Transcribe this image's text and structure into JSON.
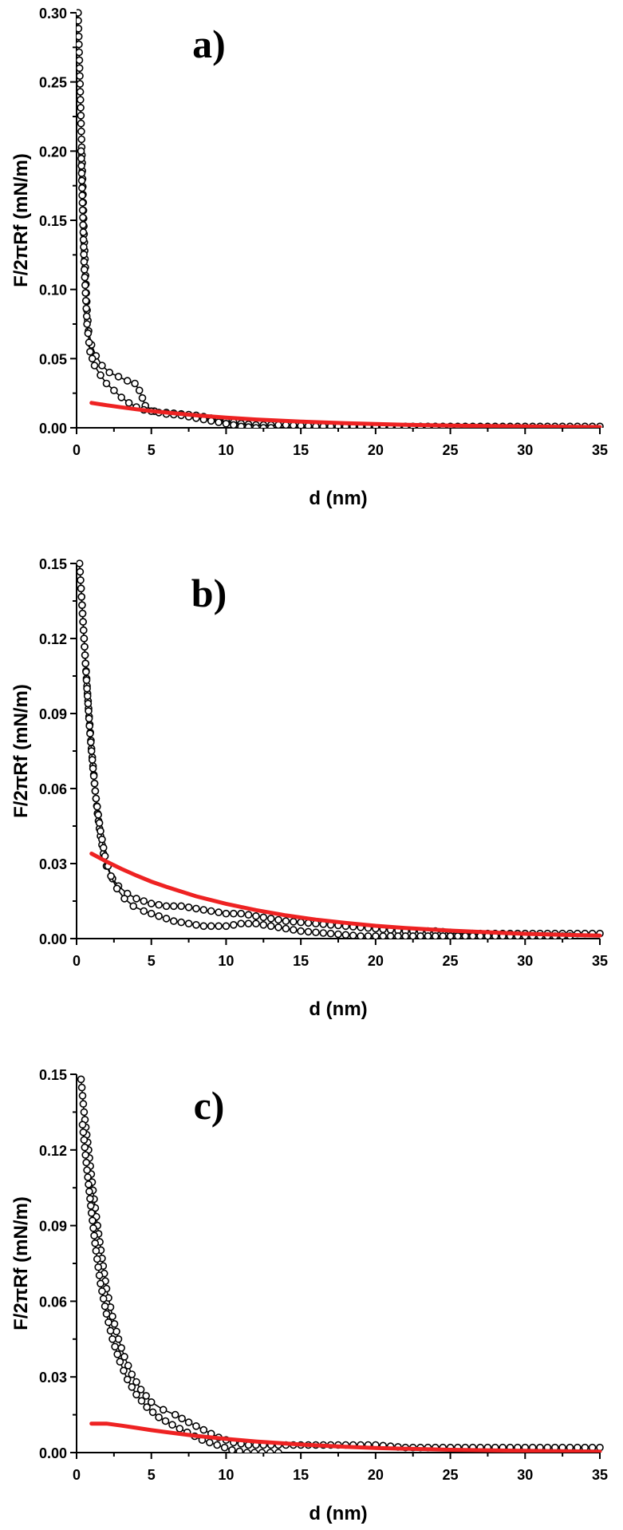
{
  "chart_data": [
    {
      "type": "scatter",
      "panel_label": "a)",
      "xlabel": "d (nm)",
      "ylabel": "F/2πRf (mN/m)",
      "xlim": [
        0,
        35
      ],
      "ylim": [
        0,
        0.3
      ],
      "xticks": [
        0,
        5,
        10,
        15,
        20,
        25,
        30,
        35
      ],
      "xtick_labels": [
        "0",
        "5",
        "10",
        "15",
        "20",
        "25",
        "30",
        "35"
      ],
      "yticks": [
        0.0,
        0.05,
        0.1,
        0.15,
        0.2,
        0.25,
        0.3
      ],
      "ytick_labels": [
        "0.00",
        "0.05",
        "0.10",
        "0.15",
        "0.20",
        "0.25",
        "0.30"
      ],
      "grid": false,
      "series": [
        {
          "kind": "markers",
          "color": "#000000",
          "x": [
            0.1,
            0.2,
            0.3,
            0.4,
            0.5,
            0.6,
            0.7,
            0.8,
            1.0,
            1.3,
            1.7,
            2.2,
            2.8,
            3.4,
            3.9,
            4.2,
            4.6,
            5.2,
            6.0,
            7.0,
            8.0,
            9.0,
            10.0,
            11.0,
            12.0,
            14.0,
            16.0,
            18.0,
            20.0,
            22.0,
            24.0,
            26.0,
            28.0,
            30.0,
            32.0,
            34.0,
            35.0
          ],
          "y": [
            0.3,
            0.26,
            0.22,
            0.18,
            0.14,
            0.11,
            0.085,
            0.07,
            0.06,
            0.052,
            0.045,
            0.04,
            0.037,
            0.034,
            0.032,
            0.027,
            0.016,
            0.012,
            0.011,
            0.01,
            0.009,
            0.007,
            0.005,
            0.003,
            0.002,
            0.002,
            0.001,
            0.001,
            0.001,
            0.001,
            0.001,
            0.001,
            0.001,
            0.001,
            0.001,
            0.001,
            0.001
          ]
        },
        {
          "kind": "markers",
          "color": "#000000",
          "x": [
            0.3,
            0.5,
            0.7,
            0.9,
            1.2,
            1.6,
            2.0,
            2.5,
            3.0,
            3.5,
            4.0,
            4.5,
            5.0,
            5.5,
            6.0,
            7.0,
            8.0,
            9.0,
            10.0,
            11.0,
            12.0,
            13.0
          ],
          "y": [
            0.2,
            0.12,
            0.075,
            0.055,
            0.045,
            0.038,
            0.032,
            0.027,
            0.022,
            0.018,
            0.015,
            0.013,
            0.012,
            0.011,
            0.01,
            0.009,
            0.007,
            0.005,
            0.003,
            0.001,
            0.0,
            0.0
          ]
        },
        {
          "kind": "line",
          "color": "#ee2222",
          "x": [
            1,
            2,
            3,
            4,
            5,
            6,
            8,
            10,
            12,
            15,
            18,
            20,
            22,
            25,
            28,
            30,
            32,
            35
          ],
          "y": [
            0.018,
            0.0163,
            0.0148,
            0.0134,
            0.0121,
            0.011,
            0.009,
            0.0074,
            0.006,
            0.0045,
            0.0033,
            0.0027,
            0.0022,
            0.0016,
            0.0012,
            0.001,
            0.0008,
            0.0006
          ]
        }
      ]
    },
    {
      "type": "scatter",
      "panel_label": "b)",
      "xlabel": "d (nm)",
      "ylabel": "F/2πRf (mN/m)",
      "xlim": [
        0,
        35
      ],
      "ylim": [
        0,
        0.15
      ],
      "xticks": [
        0,
        5,
        10,
        15,
        20,
        25,
        30,
        35
      ],
      "xtick_labels": [
        "0",
        "5",
        "10",
        "15",
        "20",
        "25",
        "30",
        "35"
      ],
      "yticks": [
        0.0,
        0.03,
        0.06,
        0.09,
        0.12,
        0.15
      ],
      "ytick_labels": [
        "0.00",
        "0.03",
        "0.06",
        "0.09",
        "0.12",
        "0.15"
      ],
      "grid": false,
      "series": [
        {
          "kind": "markers",
          "color": "#000000",
          "x": [
            0.2,
            0.4,
            0.6,
            0.8,
            1.0,
            1.2,
            1.4,
            1.6,
            1.8,
            2.0,
            2.4,
            2.8,
            3.4,
            4.0,
            5.0,
            6.0,
            7.0,
            8.0,
            9.0,
            10.0,
            11.0,
            12.0,
            13.0,
            14.0,
            16.0,
            18.0,
            20.0,
            22.0,
            24.0,
            26.0,
            28.0,
            30.0,
            32.0,
            34.0,
            35.0
          ],
          "y": [
            0.15,
            0.13,
            0.11,
            0.092,
            0.076,
            0.062,
            0.05,
            0.041,
            0.034,
            0.029,
            0.024,
            0.021,
            0.018,
            0.016,
            0.014,
            0.013,
            0.013,
            0.012,
            0.011,
            0.01,
            0.01,
            0.009,
            0.008,
            0.007,
            0.006,
            0.005,
            0.004,
            0.003,
            0.003,
            0.002,
            0.002,
            0.002,
            0.002,
            0.002,
            0.002
          ]
        },
        {
          "kind": "markers",
          "color": "#000000",
          "x": [
            0.3,
            0.5,
            0.7,
            0.9,
            1.1,
            1.3,
            1.6,
            1.9,
            2.3,
            2.7,
            3.2,
            3.8,
            4.5,
            5.5,
            6.5,
            7.5,
            8.5,
            10.0,
            11.0,
            12.0,
            13.0,
            14.0,
            15.0,
            17.0,
            19.0,
            21.0,
            23.0,
            25.0,
            27.0,
            29.0,
            31.0,
            33.0
          ],
          "y": [
            0.14,
            0.12,
            0.1,
            0.082,
            0.068,
            0.056,
            0.043,
            0.033,
            0.025,
            0.02,
            0.016,
            0.013,
            0.011,
            0.009,
            0.007,
            0.006,
            0.005,
            0.005,
            0.006,
            0.006,
            0.005,
            0.004,
            0.003,
            0.002,
            0.001,
            0.001,
            0.001,
            0.001,
            0.001,
            0.001,
            0.001,
            0.001
          ]
        },
        {
          "kind": "line",
          "color": "#ee2222",
          "x": [
            1,
            2,
            3,
            4,
            5,
            6,
            8,
            10,
            12,
            14,
            16,
            18,
            20,
            22,
            25,
            28,
            30,
            32,
            35
          ],
          "y": [
            0.034,
            0.0308,
            0.0279,
            0.0252,
            0.0228,
            0.0207,
            0.0169,
            0.0139,
            0.0114,
            0.0093,
            0.0076,
            0.0063,
            0.0051,
            0.0042,
            0.0032,
            0.0024,
            0.0019,
            0.0016,
            0.0012
          ]
        }
      ]
    },
    {
      "type": "scatter",
      "panel_label": "c)",
      "xlabel": "d (nm)",
      "ylabel": "F/2πRf (mN/m)",
      "xlim": [
        0,
        35
      ],
      "ylim": [
        0,
        0.15
      ],
      "xticks": [
        0,
        5,
        10,
        15,
        20,
        25,
        30,
        35
      ],
      "xtick_labels": [
        "0",
        "5",
        "10",
        "15",
        "20",
        "25",
        "30",
        "35"
      ],
      "yticks": [
        0.0,
        0.03,
        0.06,
        0.09,
        0.12,
        0.15
      ],
      "ytick_labels": [
        "0.00",
        "0.03",
        "0.06",
        "0.09",
        "0.12",
        "0.15"
      ],
      "grid": false,
      "series": [
        {
          "kind": "markers",
          "color": "#000000",
          "x": [
            0.3,
            0.5,
            0.8,
            1.1,
            1.4,
            1.7,
            2.0,
            2.4,
            2.8,
            3.2,
            3.7,
            4.3,
            5.0,
            5.8,
            6.6,
            7.5,
            8.5,
            9.5,
            10.5,
            11.5,
            12.5,
            14.0,
            16.0,
            18.0,
            20.0,
            22.0,
            24.0,
            26.0,
            28.0,
            30.0,
            32.0,
            34.0,
            35.0
          ],
          "y": [
            0.148,
            0.135,
            0.12,
            0.104,
            0.09,
            0.077,
            0.065,
            0.054,
            0.045,
            0.038,
            0.031,
            0.025,
            0.02,
            0.017,
            0.015,
            0.012,
            0.009,
            0.006,
            0.004,
            0.003,
            0.003,
            0.003,
            0.003,
            0.003,
            0.003,
            0.002,
            0.002,
            0.002,
            0.002,
            0.002,
            0.002,
            0.002,
            0.002
          ]
        },
        {
          "kind": "markers",
          "color": "#000000",
          "x": [
            0.4,
            0.7,
            1.0,
            1.3,
            1.6,
            2.0,
            2.4,
            2.9,
            3.4,
            4.0,
            4.7,
            5.5,
            6.4,
            7.4,
            8.4,
            9.4,
            10.4,
            11.4,
            12.4,
            13.5
          ],
          "y": [
            0.13,
            0.112,
            0.095,
            0.08,
            0.067,
            0.055,
            0.045,
            0.036,
            0.029,
            0.023,
            0.018,
            0.014,
            0.011,
            0.008,
            0.005,
            0.003,
            0.001,
            0.0,
            0.0,
            0.0
          ]
        },
        {
          "kind": "line",
          "color": "#ee2222",
          "x": [
            1,
            2,
            3,
            4,
            5,
            6,
            8,
            10,
            12,
            15,
            18,
            20,
            25,
            30,
            35
          ],
          "y": [
            0.0115,
            0.0115,
            0.0107,
            0.0098,
            0.0089,
            0.0081,
            0.0066,
            0.0054,
            0.0044,
            0.0032,
            0.0023,
            0.0018,
            0.0011,
            0.0007,
            0.0004
          ]
        }
      ]
    }
  ]
}
